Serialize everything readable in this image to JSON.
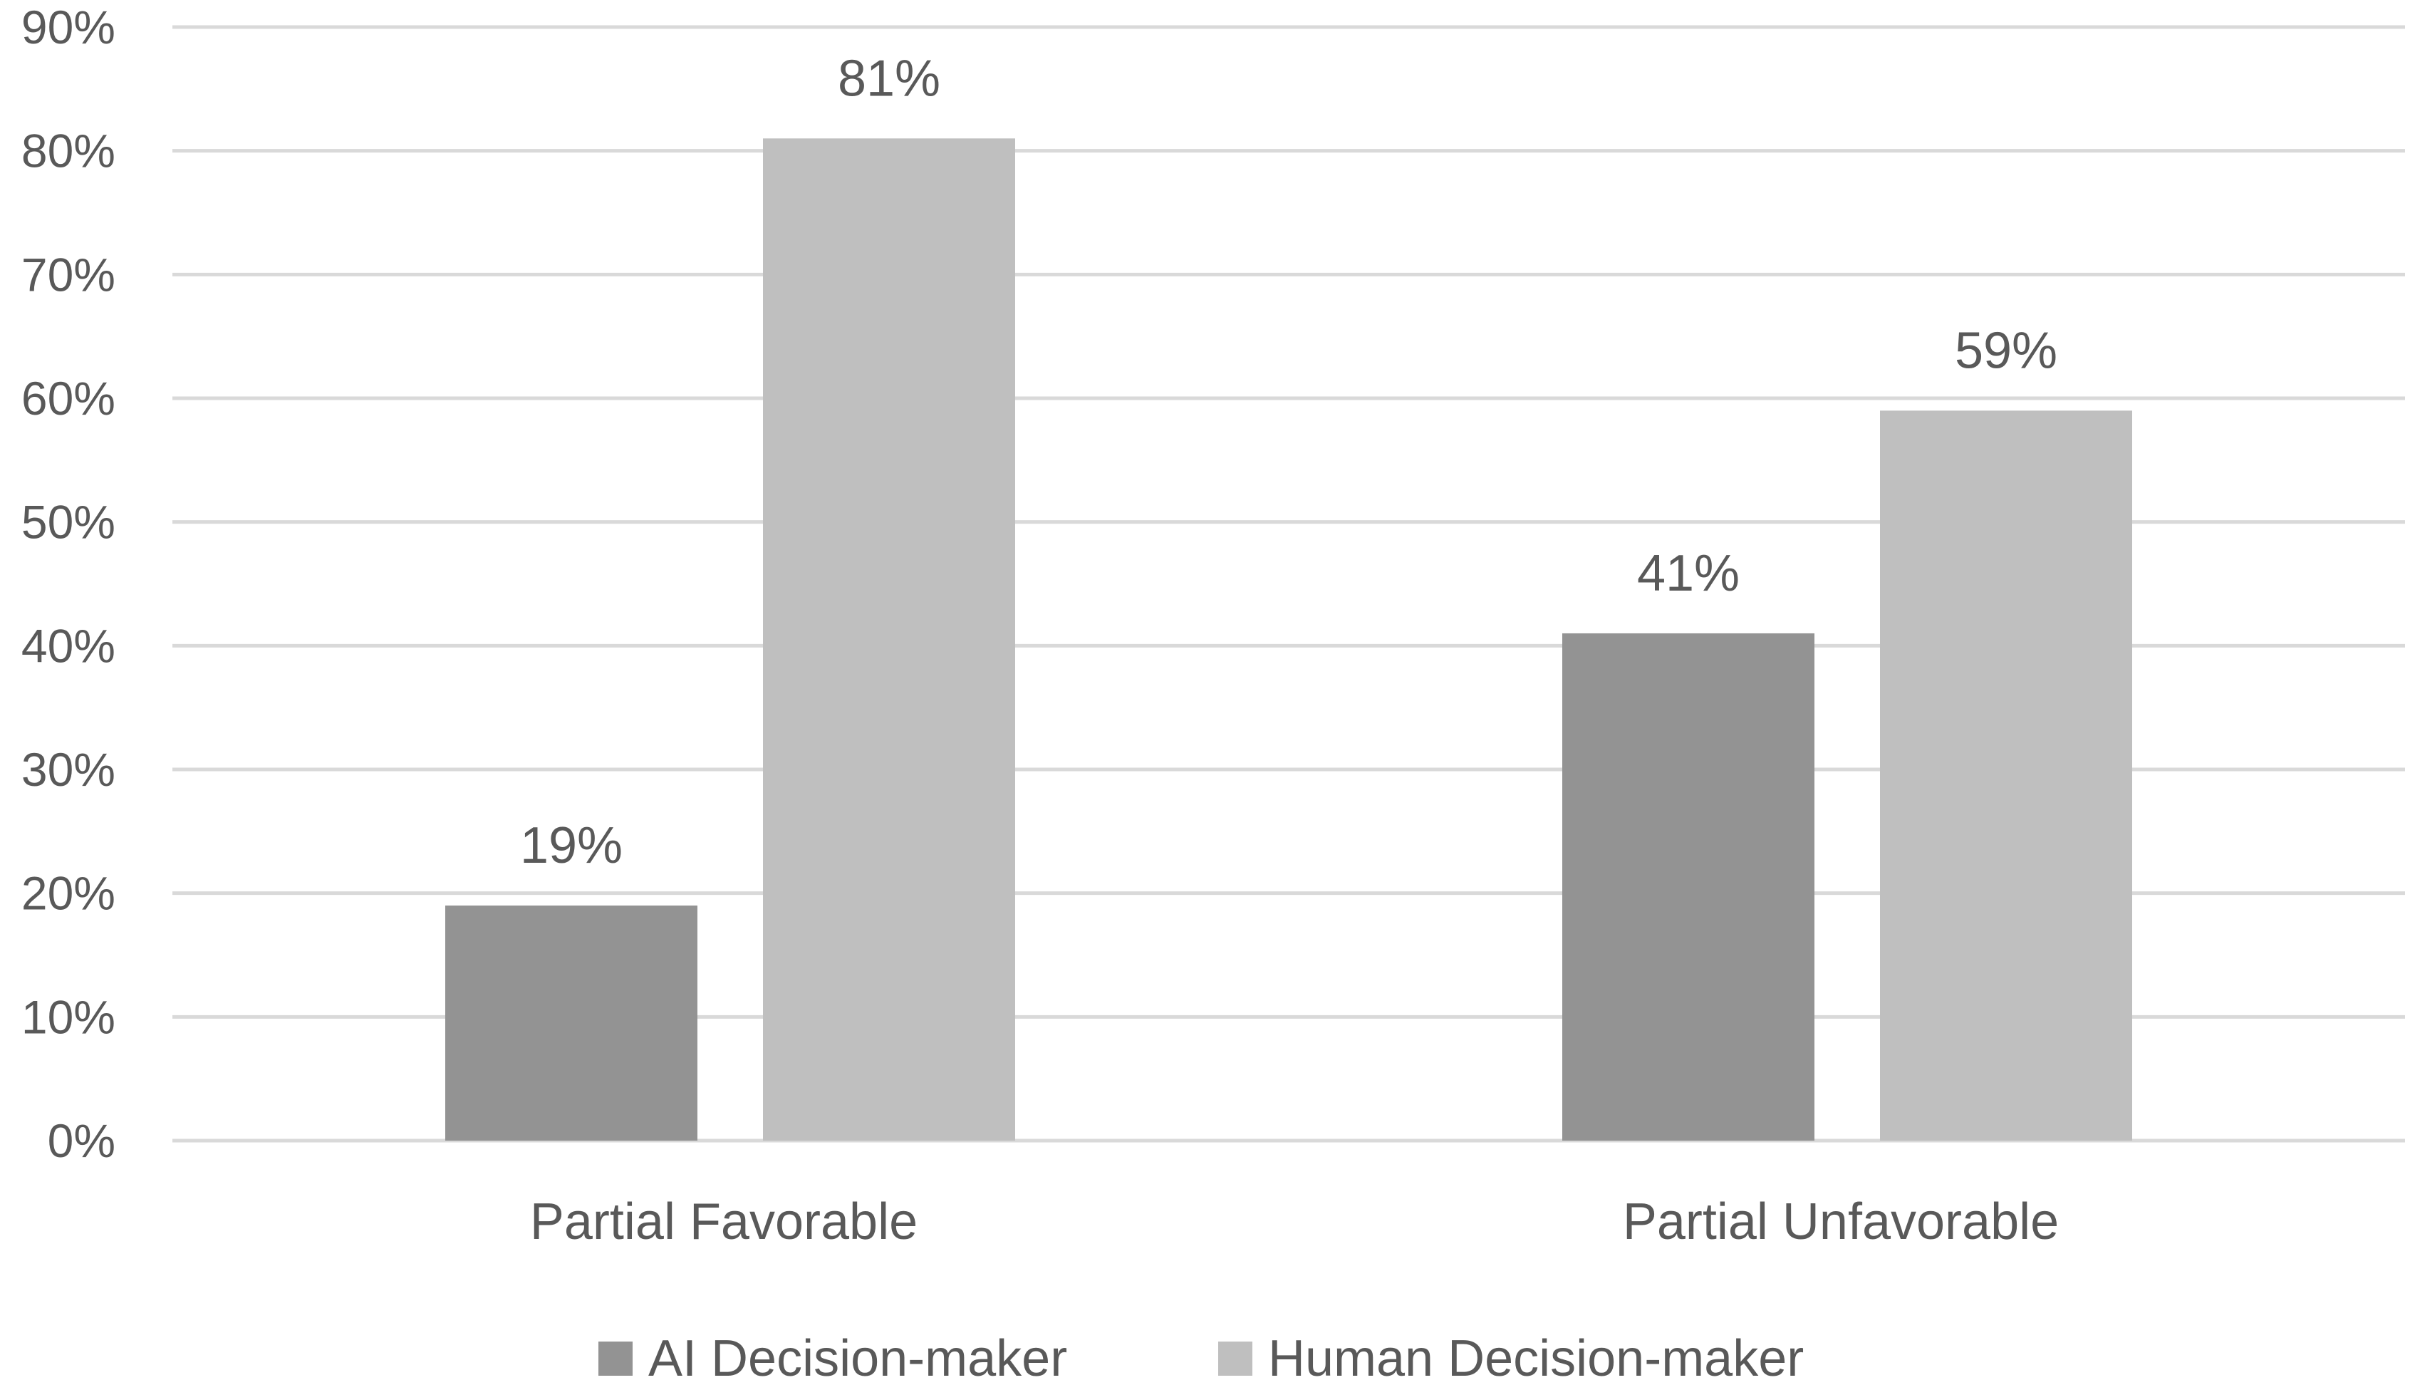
{
  "chart_data": {
    "type": "bar",
    "title": "",
    "xlabel": "",
    "ylabel": "",
    "categories": [
      "Partial Favorable",
      "Partial Unfavorable"
    ],
    "series": [
      {
        "name": "AI Decision-maker",
        "values": [
          19,
          41
        ],
        "labels": [
          "19%",
          "41%"
        ],
        "color": "#939393"
      },
      {
        "name": "Human Decision-maker",
        "values": [
          81,
          59
        ],
        "labels": [
          "81%",
          "59%"
        ],
        "color": "#bfbfbf"
      }
    ],
    "ylim": [
      0,
      90
    ],
    "yticks": [
      0,
      10,
      20,
      30,
      40,
      50,
      60,
      70,
      80,
      90
    ],
    "ytick_labels": [
      "0%",
      "10%",
      "20%",
      "30%",
      "40%",
      "50%",
      "60%",
      "70%",
      "80%",
      "90%"
    ],
    "grid": true,
    "gridline_color": "#d9d9d9",
    "text_color": "#595959",
    "legend_position": "bottom"
  }
}
